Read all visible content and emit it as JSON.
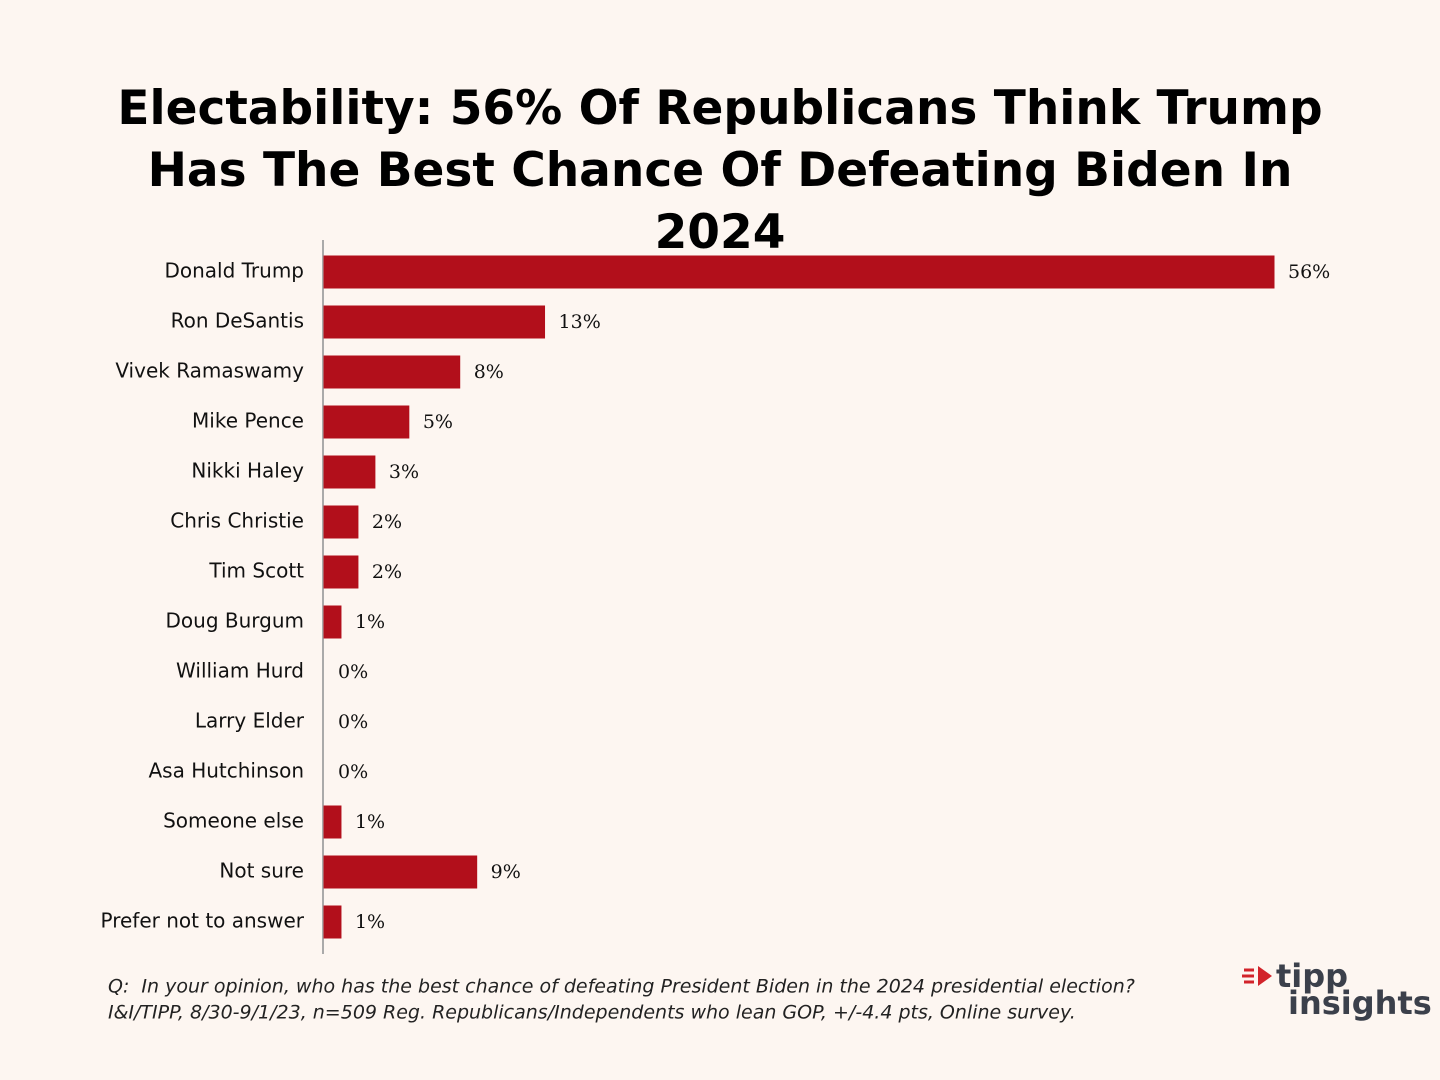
{
  "chart_data": {
    "type": "bar",
    "title": "Electability: 56% Of Republicans Think Trump Has The Best Chance Of Defeating Biden In 2024",
    "categories": [
      "Donald Trump",
      "Ron DeSantis",
      "Vivek Ramaswamy",
      "Mike Pence",
      "Nikki Haley",
      "Chris Christie",
      "Tim Scott",
      "Doug Burgum",
      "William Hurd",
      "Larry Elder",
      "Asa Hutchinson",
      "Someone else",
      "Not sure",
      "Prefer not to answer"
    ],
    "values": [
      56,
      13,
      8,
      5,
      3,
      2,
      2,
      1,
      0,
      0,
      0,
      1,
      9,
      1
    ],
    "value_labels": [
      "56%",
      "13%",
      "8%",
      "5%",
      "3%",
      "2%",
      "2%",
      "1%",
      "0%",
      "0%",
      "0%",
      "1%",
      "9%",
      "1%"
    ],
    "color": "#b20f1b",
    "notes": [
      "Q:  In your opinion, who has the best chance of defeating President Biden in the 2024 presidential election?",
      "I&I/TIPP, 8/30-9/1/23, n=509 Reg. Republicans/Independents who lean GOP, +/-4.4 pts, Online survey."
    ]
  },
  "logo": {
    "line1": "tipp",
    "line2": "insights"
  }
}
